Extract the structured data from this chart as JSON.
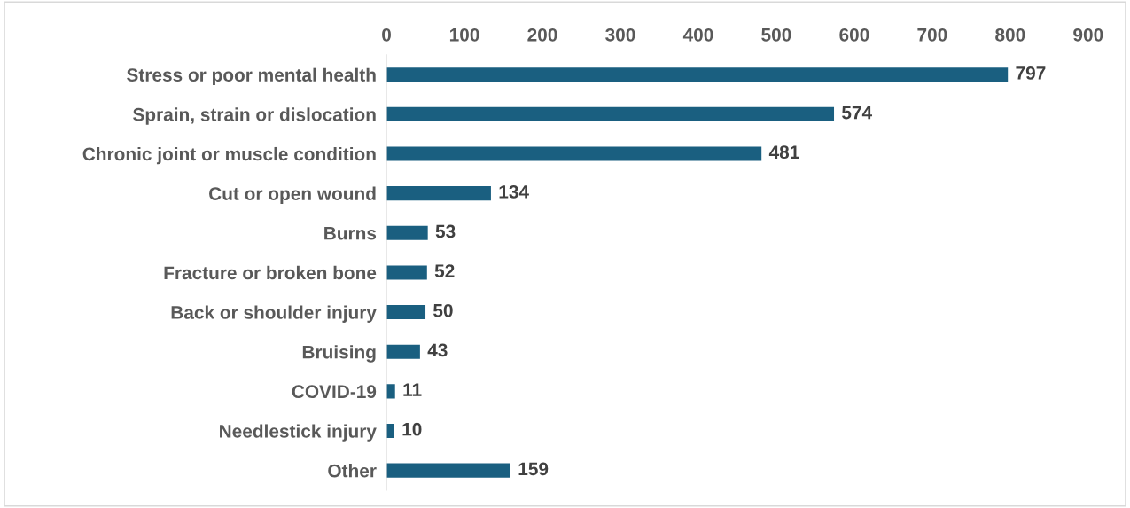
{
  "chart_data": {
    "type": "bar",
    "orientation": "horizontal",
    "categories": [
      "Stress or poor mental health",
      "Sprain, strain or dislocation",
      "Chronic joint or muscle condition",
      "Cut or open wound",
      "Burns",
      "Fracture or broken bone",
      "Back or shoulder injury",
      "Bruising",
      "COVID-19",
      "Needlestick injury",
      "Other"
    ],
    "values": [
      797,
      574,
      481,
      134,
      53,
      52,
      50,
      43,
      11,
      10,
      159
    ],
    "color": "#1a5f80",
    "xlim": [
      0,
      900
    ],
    "xticks": [
      0,
      100,
      200,
      300,
      400,
      500,
      600,
      700,
      800,
      900
    ],
    "data_labels": true,
    "grid": false,
    "legend": false
  }
}
